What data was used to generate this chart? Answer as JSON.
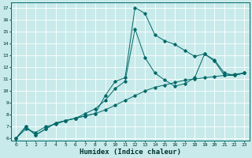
{
  "xlabel": "Humidex (Indice chaleur)",
  "background_color": "#c8eaea",
  "grid_color": "#ffffff",
  "line_color": "#006868",
  "xlim": [
    -0.5,
    23.5
  ],
  "ylim": [
    5.8,
    17.4
  ],
  "xticks": [
    0,
    1,
    2,
    3,
    4,
    5,
    6,
    7,
    8,
    9,
    10,
    11,
    12,
    13,
    14,
    15,
    16,
    17,
    18,
    19,
    20,
    21,
    22,
    23
  ],
  "yticks": [
    6,
    7,
    8,
    9,
    10,
    11,
    12,
    13,
    14,
    15,
    16,
    17
  ],
  "line1_x": [
    0,
    1,
    2,
    3,
    4,
    5,
    6,
    7,
    8,
    9,
    10,
    11,
    12,
    13,
    14,
    15,
    16,
    17,
    18,
    19,
    20,
    21,
    22,
    23
  ],
  "line1_y": [
    6.0,
    7.0,
    6.3,
    6.8,
    7.3,
    7.5,
    7.7,
    7.9,
    8.1,
    9.6,
    10.8,
    11.1,
    17.0,
    16.5,
    14.7,
    14.2,
    13.9,
    13.4,
    12.9,
    13.1,
    12.5,
    11.3,
    11.3,
    11.5
  ],
  "line2_x": [
    0,
    1,
    2,
    3,
    4,
    5,
    6,
    7,
    8,
    9,
    10,
    11,
    12,
    13,
    14,
    15,
    16,
    17,
    18,
    19,
    20,
    21,
    22,
    23
  ],
  "line2_y": [
    6.0,
    7.0,
    6.3,
    6.8,
    7.3,
    7.5,
    7.7,
    8.1,
    8.5,
    9.2,
    10.2,
    10.8,
    15.2,
    12.8,
    11.5,
    10.9,
    10.4,
    10.6,
    11.1,
    13.1,
    12.6,
    11.5,
    11.3,
    11.5
  ],
  "line3_x": [
    0,
    1,
    2,
    3,
    4,
    5,
    6,
    7,
    8,
    9,
    10,
    11,
    12,
    13,
    14,
    15,
    16,
    17,
    18,
    19,
    20,
    21,
    22,
    23
  ],
  "line3_y": [
    6.0,
    6.8,
    6.5,
    7.0,
    7.2,
    7.5,
    7.7,
    7.9,
    8.1,
    8.4,
    8.8,
    9.2,
    9.6,
    10.0,
    10.3,
    10.5,
    10.7,
    10.9,
    11.0,
    11.1,
    11.2,
    11.3,
    11.4,
    11.5
  ]
}
